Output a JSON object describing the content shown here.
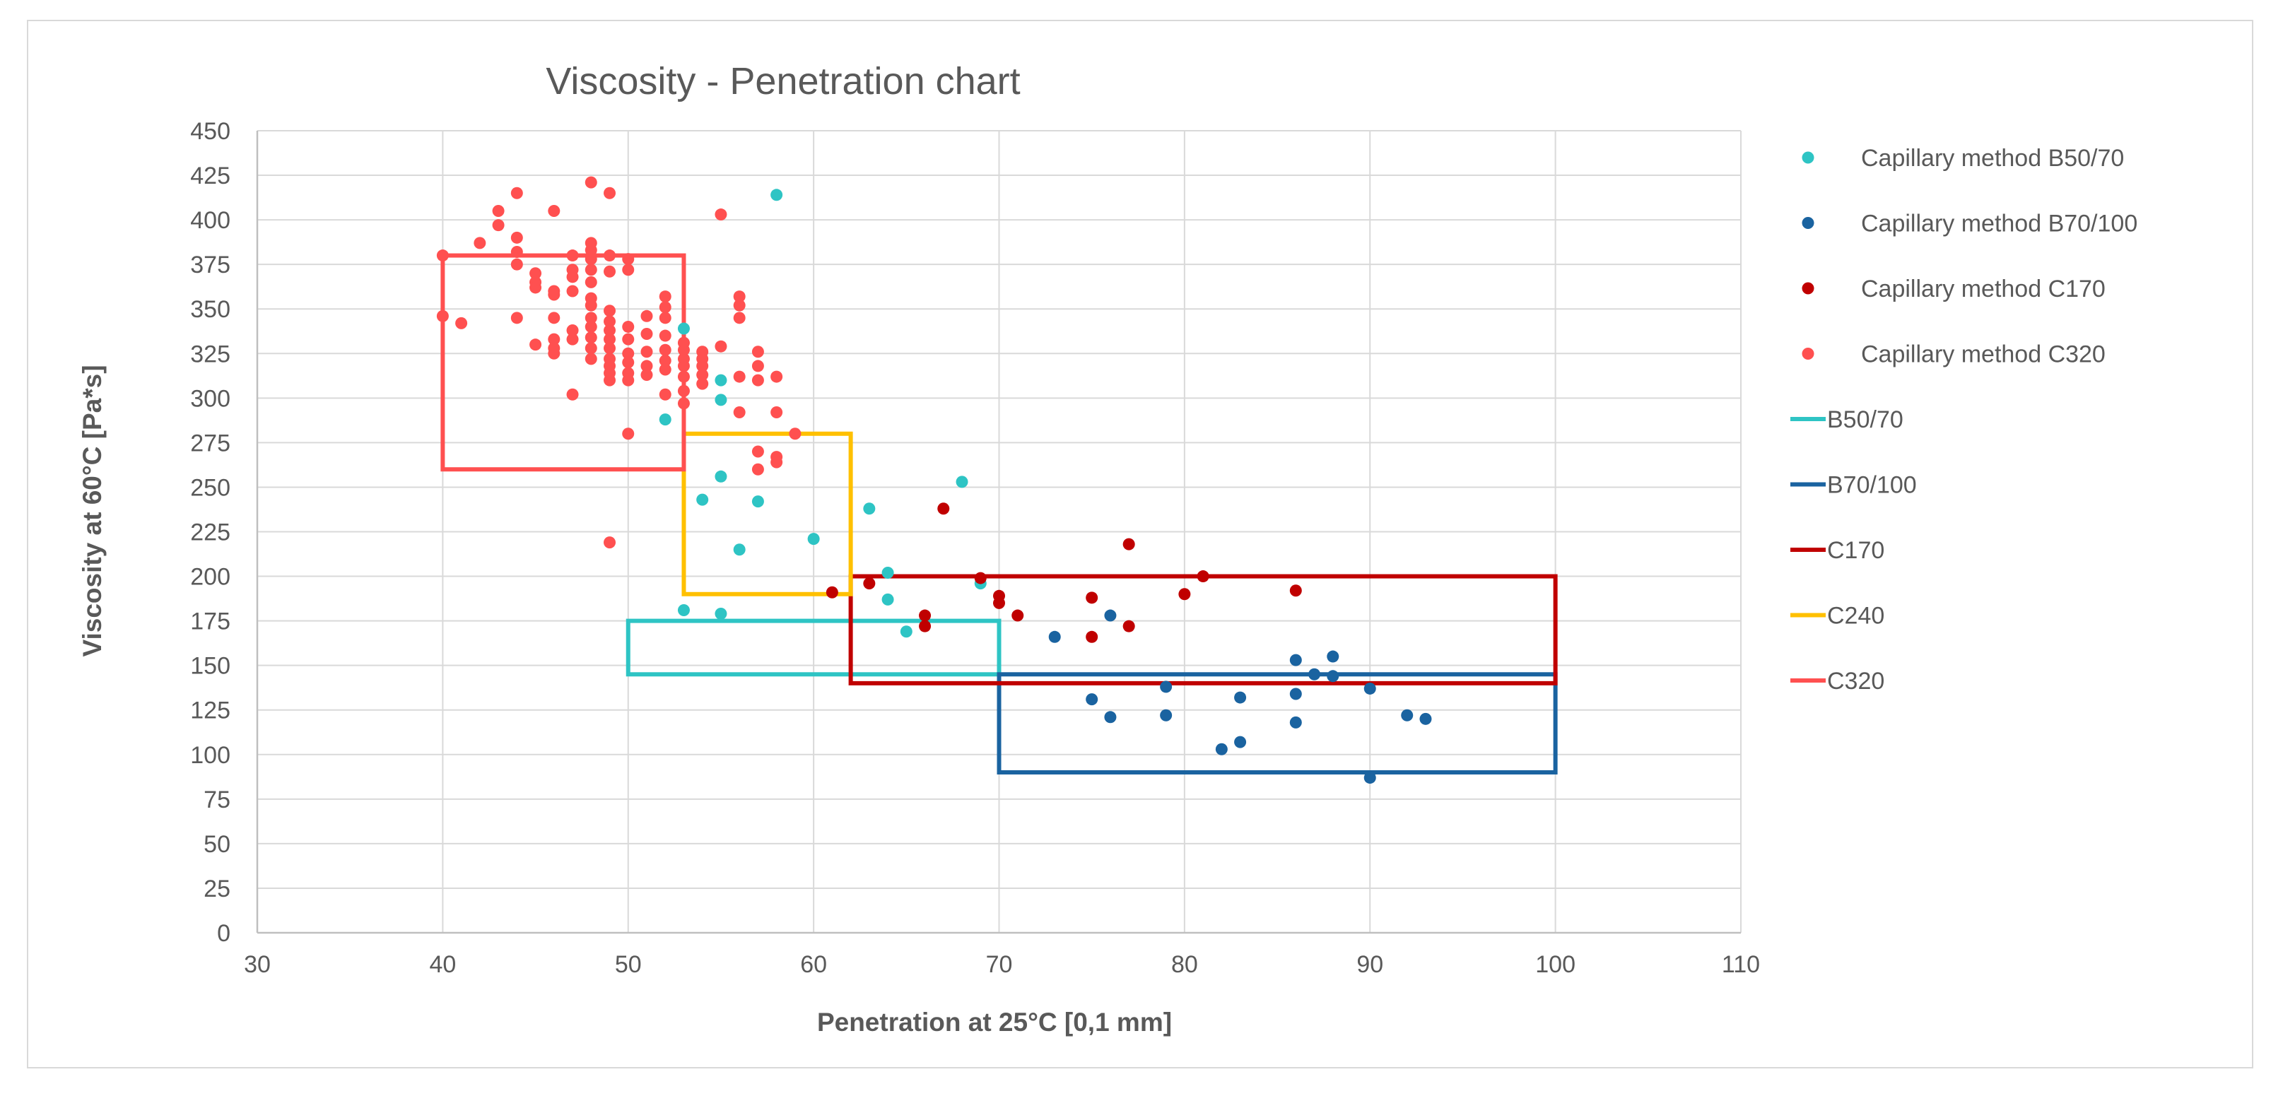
{
  "chart_data": {
    "type": "scatter",
    "title": "Viscosity - Penetration chart",
    "xlabel": "Penetration at 25°C [0,1 mm]",
    "ylabel": "Viscosity at 60°C [Pa*s]",
    "xlim": [
      30,
      110
    ],
    "ylim": [
      0,
      450
    ],
    "x_ticks": [
      30,
      40,
      50,
      60,
      70,
      80,
      90,
      100,
      110
    ],
    "y_ticks": [
      0,
      25,
      50,
      75,
      100,
      125,
      150,
      175,
      200,
      225,
      250,
      275,
      300,
      325,
      350,
      375,
      400,
      425,
      450
    ],
    "grid": true,
    "legend_position": "right",
    "series": [
      {
        "name": "Capillary method B50/70",
        "kind": "points",
        "color": "#2ec4c4",
        "points": [
          [
            58,
            414
          ],
          [
            53,
            339
          ],
          [
            52,
            288
          ],
          [
            55,
            310
          ],
          [
            55,
            299
          ],
          [
            54,
            243
          ],
          [
            55,
            256
          ],
          [
            57,
            242
          ],
          [
            56,
            215
          ],
          [
            60,
            221
          ],
          [
            63,
            238
          ],
          [
            64,
            202
          ],
          [
            64,
            187
          ],
          [
            68,
            253
          ],
          [
            69,
            196
          ],
          [
            65,
            169
          ],
          [
            53,
            181
          ],
          [
            55,
            179
          ]
        ]
      },
      {
        "name": "Capillary method B70/100",
        "kind": "points",
        "color": "#1a63a0",
        "points": [
          [
            73,
            166
          ],
          [
            76,
            178
          ],
          [
            75,
            131
          ],
          [
            76,
            121
          ],
          [
            79,
            138
          ],
          [
            79,
            122
          ],
          [
            83,
            132
          ],
          [
            82,
            103
          ],
          [
            83,
            107
          ],
          [
            86,
            153
          ],
          [
            86,
            134
          ],
          [
            86,
            118
          ],
          [
            87,
            145
          ],
          [
            88,
            155
          ],
          [
            88,
            144
          ],
          [
            90,
            137
          ],
          [
            90,
            87
          ],
          [
            92,
            122
          ],
          [
            93,
            120
          ]
        ]
      },
      {
        "name": "Capillary method C170",
        "kind": "points",
        "color": "#c00000",
        "points": [
          [
            67,
            238
          ],
          [
            61,
            191
          ],
          [
            63,
            196
          ],
          [
            66,
            178
          ],
          [
            66,
            172
          ],
          [
            69,
            199
          ],
          [
            70,
            189
          ],
          [
            70,
            185
          ],
          [
            71,
            178
          ],
          [
            75,
            188
          ],
          [
            75,
            166
          ],
          [
            77,
            218
          ],
          [
            77,
            172
          ],
          [
            80,
            190
          ],
          [
            81,
            200
          ],
          [
            86,
            192
          ]
        ]
      },
      {
        "name": "Capillary method C320",
        "kind": "points",
        "color": "#ff5050",
        "points": [
          [
            48,
            421
          ],
          [
            49,
            415
          ],
          [
            44,
            415
          ],
          [
            43,
            405
          ],
          [
            46,
            405
          ],
          [
            43,
            397
          ],
          [
            44,
            390
          ],
          [
            42,
            387
          ],
          [
            40,
            380
          ],
          [
            44,
            382
          ],
          [
            44,
            375
          ],
          [
            45,
            370
          ],
          [
            45,
            365
          ],
          [
            45,
            362
          ],
          [
            46,
            360
          ],
          [
            46,
            358
          ],
          [
            47,
            380
          ],
          [
            47,
            372
          ],
          [
            47,
            368
          ],
          [
            47,
            360
          ],
          [
            48,
            387
          ],
          [
            48,
            383
          ],
          [
            48,
            378
          ],
          [
            48,
            372
          ],
          [
            48,
            365
          ],
          [
            49,
            380
          ],
          [
            49,
            371
          ],
          [
            50,
            378
          ],
          [
            50,
            372
          ],
          [
            48,
            356
          ],
          [
            48,
            352
          ],
          [
            49,
            349
          ],
          [
            49,
            343
          ],
          [
            49,
            338
          ],
          [
            49,
            333
          ],
          [
            49,
            328
          ],
          [
            48,
            345
          ],
          [
            48,
            340
          ],
          [
            48,
            334
          ],
          [
            48,
            328
          ],
          [
            48,
            322
          ],
          [
            46,
            345
          ],
          [
            47,
            338
          ],
          [
            47,
            333
          ],
          [
            46,
            333
          ],
          [
            46,
            328
          ],
          [
            46,
            325
          ],
          [
            45,
            330
          ],
          [
            44,
            345
          ],
          [
            40,
            346
          ],
          [
            41,
            342
          ],
          [
            49,
            322
          ],
          [
            49,
            318
          ],
          [
            49,
            314
          ],
          [
            49,
            310
          ],
          [
            50,
            340
          ],
          [
            50,
            333
          ],
          [
            50,
            325
          ],
          [
            50,
            320
          ],
          [
            50,
            314
          ],
          [
            50,
            310
          ],
          [
            51,
            346
          ],
          [
            51,
            336
          ],
          [
            51,
            326
          ],
          [
            51,
            318
          ],
          [
            51,
            313
          ],
          [
            52,
            357
          ],
          [
            52,
            351
          ],
          [
            52,
            345
          ],
          [
            52,
            335
          ],
          [
            52,
            327
          ],
          [
            52,
            321
          ],
          [
            52,
            316
          ],
          [
            52,
            302
          ],
          [
            53,
            331
          ],
          [
            53,
            327
          ],
          [
            53,
            322
          ],
          [
            53,
            318
          ],
          [
            53,
            312
          ],
          [
            53,
            304
          ],
          [
            53,
            297
          ],
          [
            54,
            326
          ],
          [
            54,
            322
          ],
          [
            54,
            318
          ],
          [
            54,
            313
          ],
          [
            54,
            308
          ],
          [
            55,
            329
          ],
          [
            55,
            403
          ],
          [
            56,
            357
          ],
          [
            56,
            352
          ],
          [
            56,
            345
          ],
          [
            56,
            312
          ],
          [
            56,
            292
          ],
          [
            57,
            326
          ],
          [
            57,
            318
          ],
          [
            57,
            310
          ],
          [
            57,
            270
          ],
          [
            57,
            260
          ],
          [
            58,
            312
          ],
          [
            58,
            292
          ],
          [
            58,
            267
          ],
          [
            58,
            264
          ],
          [
            59,
            280
          ],
          [
            47,
            302
          ],
          [
            50,
            280
          ],
          [
            49,
            219
          ]
        ]
      },
      {
        "name": "B50/70",
        "kind": "box",
        "color": "#2ec4c4",
        "x": [
          50,
          70
        ],
        "y": [
          145,
          175
        ]
      },
      {
        "name": "B70/100",
        "kind": "box",
        "color": "#1a63a0",
        "x": [
          70,
          100
        ],
        "y": [
          90,
          145
        ]
      },
      {
        "name": "C170",
        "kind": "box",
        "color": "#c00000",
        "x": [
          62,
          100
        ],
        "y": [
          140,
          200
        ]
      },
      {
        "name": "C240",
        "kind": "box",
        "color": "#ffc000",
        "x": [
          53,
          62
        ],
        "y": [
          190,
          280
        ]
      },
      {
        "name": "C320",
        "kind": "box",
        "color": "#ff5050",
        "x": [
          40,
          53
        ],
        "y": [
          260,
          380
        ]
      }
    ]
  }
}
